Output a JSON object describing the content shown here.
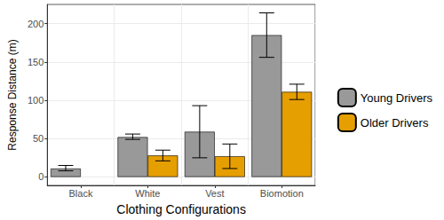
{
  "chart_data": {
    "type": "bar",
    "x_label": "Clothing Configurations",
    "y_label": "Response Distance (m)",
    "categories": [
      "Black",
      "White",
      "Vest",
      "Biomotion"
    ],
    "series": [
      {
        "name": "Young Drivers",
        "color": "#999999",
        "values": [
          11,
          52,
          59,
          185
        ],
        "error_low": [
          8,
          49,
          25,
          156
        ],
        "error_high": [
          15,
          56,
          93,
          214
        ]
      },
      {
        "name": "Older Drivers",
        "color": "#E69F00",
        "values": [
          null,
          28,
          27,
          111
        ],
        "error_low": [
          null,
          21,
          11,
          101
        ],
        "error_high": [
          null,
          35,
          43,
          121
        ]
      }
    ],
    "ylim": [
      -11,
      225
    ],
    "yticks": [
      0,
      50,
      100,
      150,
      200
    ],
    "grid": true,
    "legend": "right"
  }
}
